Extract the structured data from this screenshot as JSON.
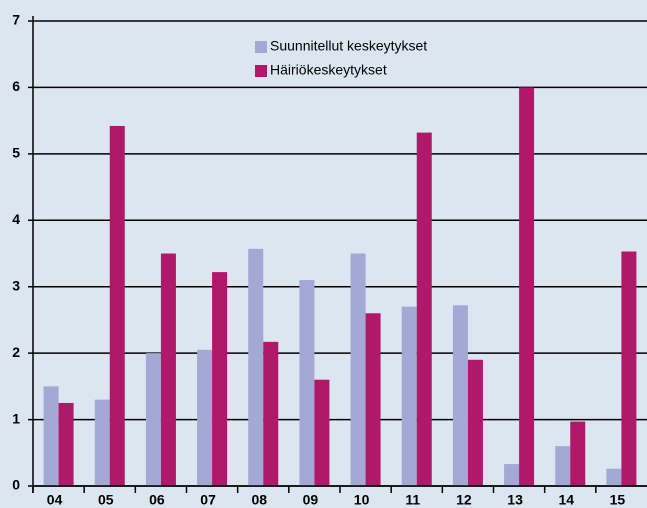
{
  "chart_data": {
    "type": "bar",
    "categories": [
      "04",
      "05",
      "06",
      "07",
      "08",
      "09",
      "10",
      "11",
      "12",
      "13",
      "14",
      "15"
    ],
    "series": [
      {
        "name": "Suunnitellut keskeytykset",
        "color": "#a3a8d4",
        "values": [
          1.5,
          1.3,
          2.0,
          2.05,
          3.57,
          3.1,
          3.5,
          2.7,
          2.72,
          0.33,
          0.6,
          0.26
        ]
      },
      {
        "name": "Häiriökeskeytykset",
        "color": "#b0186a",
        "values": [
          1.25,
          5.42,
          3.5,
          3.22,
          2.17,
          1.6,
          2.6,
          5.32,
          1.9,
          6.0,
          0.97,
          3.53
        ]
      }
    ],
    "ylim": [
      0,
      7
    ],
    "yticks": [
      0,
      1,
      2,
      3,
      4,
      5,
      6,
      7
    ],
    "grid": true
  }
}
